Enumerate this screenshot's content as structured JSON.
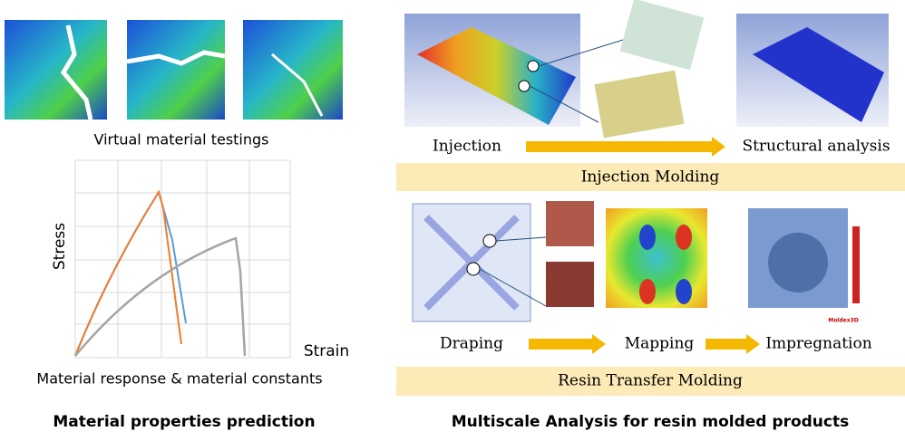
{
  "left": {
    "testing_caption": "Virtual material testings",
    "chart": {
      "y_label": "Stress",
      "x_label": "Strain"
    },
    "chart_caption": "Material response & material constants",
    "title": "Material properties prediction"
  },
  "right": {
    "injection": {
      "steps": [
        "Injection",
        "Structural analysis"
      ],
      "band": "Injection Molding"
    },
    "rtm": {
      "steps": [
        "Draping",
        "Mapping",
        "Impregnation"
      ],
      "band": "Resin Transfer Molding",
      "logo": "Moldex3D"
    },
    "title": "Multiscale Analysis for resin molded products"
  }
}
